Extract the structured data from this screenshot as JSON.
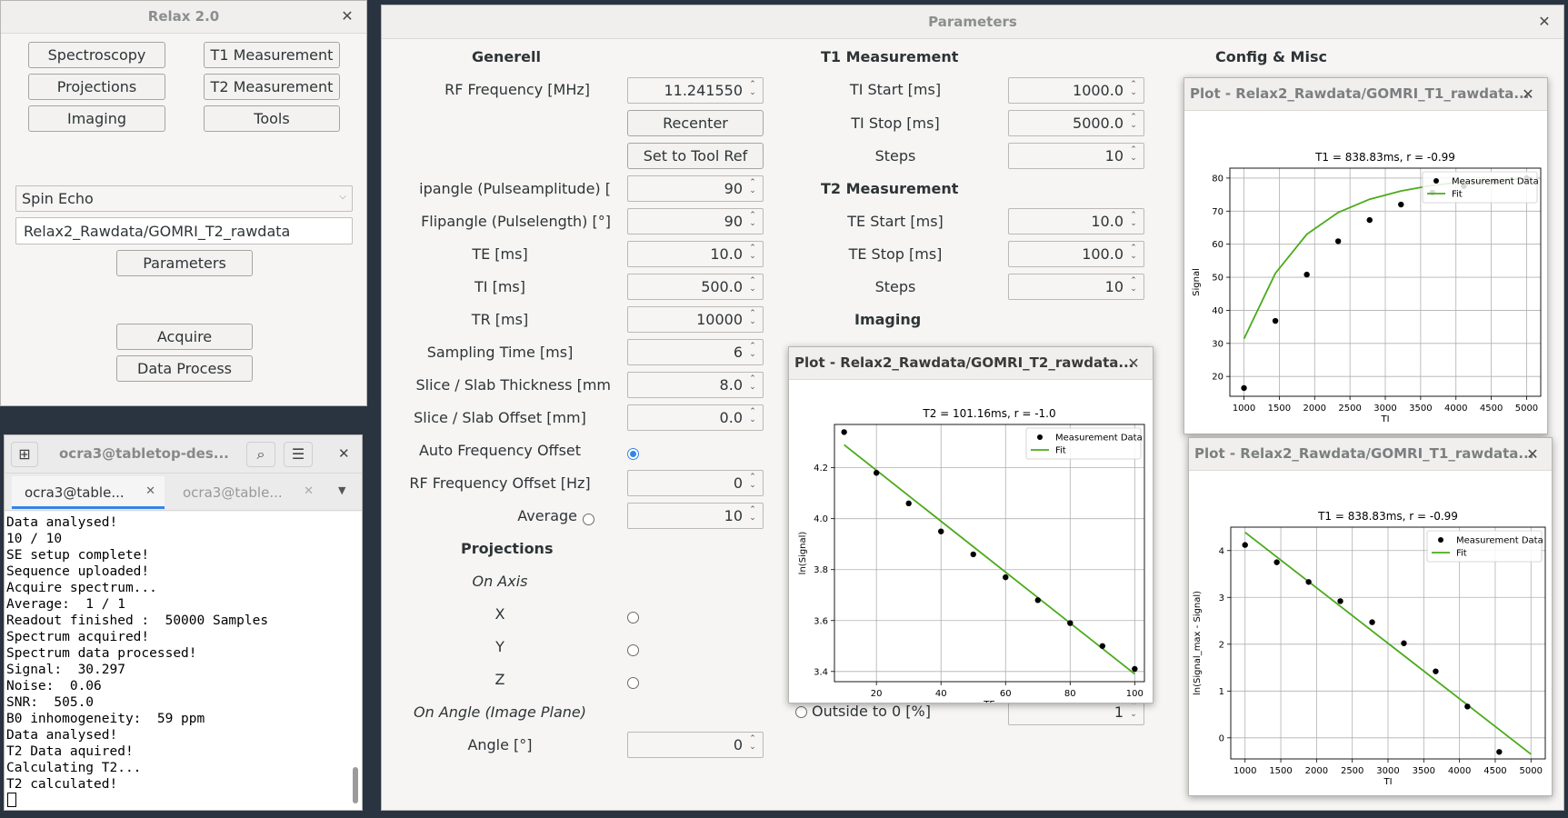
{
  "relax": {
    "title": "Relax 2.0",
    "buttons": {
      "spectroscopy": "Spectroscopy",
      "t1": "T1 Measurement",
      "projections": "Projections",
      "t2": "T2 Measurement",
      "imaging": "Imaging",
      "tools": "Tools",
      "parameters": "Parameters",
      "acquire": "Acquire",
      "data_process": "Data Process"
    },
    "sequence_select": "Spin Echo",
    "datapath": "Relax2_Rawdata/GOMRI_T2_rawdata"
  },
  "terminal": {
    "title": "ocra3@tabletop-des...",
    "tabs": [
      "ocra3@table...",
      "ocra3@table..."
    ],
    "lines": [
      "Data analysed!",
      "10 / 10",
      "SE setup complete!",
      "Sequence uploaded!",
      "Acquire spectrum...",
      "Average:  1 / 1",
      "Readout finished :  50000 Samples",
      "Spectrum acquired!",
      "Spectrum data processed!",
      "Signal:  30.297",
      "Noise:  0.06",
      "SNR:  505.0",
      "B0 inhomogeneity:  59 ppm",
      "Data analysed!",
      "T2 Data aquired!",
      "Calculating T2...",
      "T2 calculated!"
    ]
  },
  "params": {
    "title": "Parameters",
    "sections": {
      "generell": "Generell",
      "t1": "T1 Measurement",
      "config": "Config & Misc",
      "t2": "T2 Measurement",
      "imaging": "Imaging",
      "projections": "Projections"
    },
    "generell": {
      "rf_frequency_label": "RF Frequency [MHz]",
      "rf_frequency": "11.241550",
      "recenter": "Recenter",
      "set_tool_ref": "Set to Tool Ref",
      "flip_amp_label": "ipangle (Pulseamplitude) [",
      "flip_amp": "90",
      "flip_len_label": "Flipangle (Pulselength) [°]",
      "flip_len": "90",
      "te_label": "TE [ms]",
      "te": "10.0",
      "ti_label": "TI [ms]",
      "ti": "500.0",
      "tr_label": "TR [ms]",
      "tr": "10000",
      "sampling_label": "Sampling Time [ms]",
      "sampling": "6",
      "slice_thick_label": "Slice / Slab Thickness [mm",
      "slice_thick": "8.0",
      "slice_offset_label": "Slice / Slab Offset [mm]",
      "slice_offset": "0.0",
      "auto_freq_label": "Auto Frequency Offset",
      "rf_offset_label": "RF Frequency Offset [Hz]",
      "rf_offset": "0",
      "average_label": "Average",
      "average": "10"
    },
    "projections": {
      "on_axis": "On Axis",
      "x": "X",
      "y": "Y",
      "z": "Z",
      "on_angle": "On Angle (Image Plane)",
      "angle_label": "Angle [°]",
      "angle": "0"
    },
    "t1": {
      "start_label": "TI Start [ms]",
      "start": "1000.0",
      "stop_label": "TI Stop [ms]",
      "stop": "5000.0",
      "steps_label": "Steps",
      "steps": "10"
    },
    "t2": {
      "start_label": "TE Start [ms]",
      "start": "10.0",
      "stop_label": "TE Stop [ms]",
      "stop": "100.0",
      "steps_label": "Steps",
      "steps": "10"
    },
    "imaging": {
      "outside_label": "Outside to 0 [%]",
      "outside": "1"
    }
  },
  "plot_t2": {
    "window_title": "Plot - Relax2_Rawdata/GOMRI_T2_rawdata...",
    "chart_data": {
      "type": "scatter",
      "title": "T2 = 101.16ms, r = -1.0",
      "xlabel": "TE",
      "ylabel": "ln(Signal)",
      "xlim": [
        7,
        103
      ],
      "ylim": [
        3.36,
        4.37
      ],
      "xticks": [
        20,
        40,
        60,
        80,
        100
      ],
      "yticks": [
        3.4,
        3.6,
        3.8,
        4.0,
        4.2
      ],
      "ytick_decimals": 1,
      "grid": true,
      "legend": "top-right",
      "series": [
        {
          "name": "Measurement Data",
          "kind": "points",
          "color": "#000000",
          "x": [
            10,
            20,
            30,
            40,
            50,
            60,
            70,
            80,
            90,
            100
          ],
          "y": [
            4.34,
            4.18,
            4.06,
            3.95,
            3.86,
            3.77,
            3.68,
            3.59,
            3.5,
            3.41
          ]
        },
        {
          "name": "Fit",
          "kind": "line",
          "color": "#4aab1a",
          "x": [
            10,
            100
          ],
          "y": [
            4.29,
            3.39
          ]
        }
      ]
    }
  },
  "plot_t1a": {
    "window_title": "Plot - Relax2_Rawdata/GOMRI_T1_rawdata...",
    "chart_data": {
      "type": "scatter",
      "title": "T1 = 838.83ms, r = -0.99",
      "xlabel": "TI",
      "ylabel": "Signal",
      "xlim": [
        800,
        5200
      ],
      "ylim": [
        14,
        83
      ],
      "xticks": [
        1000,
        1500,
        2000,
        2500,
        3000,
        3500,
        4000,
        4500,
        5000
      ],
      "yticks": [
        20,
        30,
        40,
        50,
        60,
        70,
        80
      ],
      "ytick_decimals": 0,
      "grid": true,
      "legend": "top-right",
      "series": [
        {
          "name": "Measurement Data",
          "kind": "points",
          "color": "#000000",
          "x": [
            1000,
            1444,
            1889,
            2333,
            2778,
            3222,
            3667,
            4111,
            4556,
            5000
          ],
          "y": [
            16.5,
            36.8,
            50.8,
            60.9,
            67.3,
            72,
            75.6,
            77.6,
            79,
            80
          ]
        },
        {
          "name": "Fit",
          "kind": "line",
          "color": "#4aab1a",
          "x": [
            1000,
            1444,
            1889,
            2333,
            2778,
            3222,
            3667,
            4111,
            4556,
            5000
          ],
          "y": [
            31.4,
            51.2,
            63,
            69.6,
            73.6,
            76.1,
            77.8,
            78.8,
            79.4,
            79.8
          ]
        }
      ]
    }
  },
  "plot_t1b": {
    "window_title": "Plot - Relax2_Rawdata/GOMRI_T1_rawdata...",
    "chart_data": {
      "type": "scatter",
      "title": "T1 = 838.83ms, r = -0.99",
      "xlabel": "TI",
      "ylabel": "ln(Signal_max - Signal)",
      "xlim": [
        800,
        5200
      ],
      "ylim": [
        -0.45,
        4.5
      ],
      "xticks": [
        1000,
        1500,
        2000,
        2500,
        3000,
        3500,
        4000,
        4500,
        5000
      ],
      "yticks": [
        0,
        1,
        2,
        3,
        4
      ],
      "ytick_decimals": 0,
      "grid": true,
      "legend": "top-right",
      "series": [
        {
          "name": "Measurement Data",
          "kind": "points",
          "color": "#000000",
          "x": [
            1000,
            1444,
            1889,
            2333,
            2778,
            3222,
            3667,
            4111,
            4556
          ],
          "y": [
            4.12,
            3.75,
            3.33,
            2.92,
            2.47,
            2.02,
            1.42,
            0.67,
            -0.3
          ]
        },
        {
          "name": "Fit",
          "kind": "line",
          "color": "#4aab1a",
          "x": [
            1000,
            5000
          ],
          "y": [
            4.39,
            -0.35
          ]
        }
      ]
    }
  }
}
